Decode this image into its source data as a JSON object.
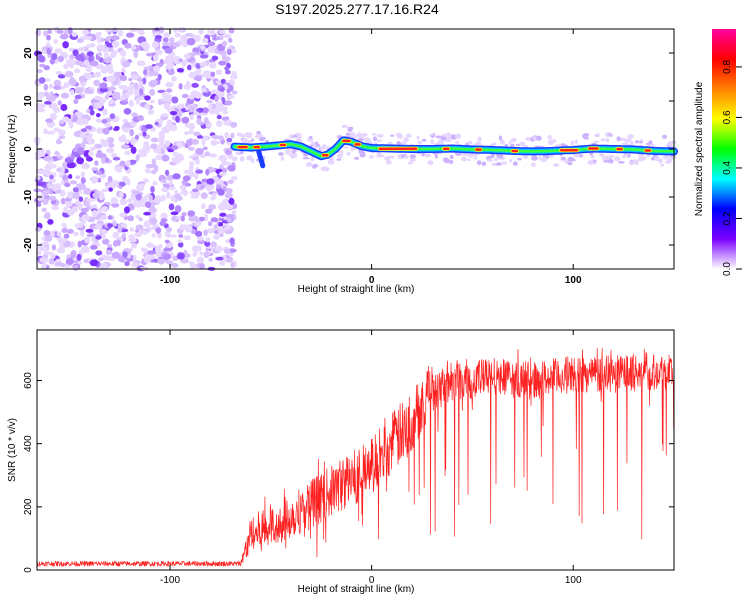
{
  "title": "S197.2025.277.17.16.R24",
  "chart_data": [
    {
      "type": "heatmap",
      "xlabel": "Height of straight line (km)",
      "ylabel": "Frequency (Hz)",
      "xlim": [
        -166,
        150
      ],
      "ylim": [
        -25,
        25
      ],
      "xticks": [
        -100,
        0,
        100
      ],
      "yticks": [
        -20,
        -10,
        0,
        10,
        20
      ],
      "noise_region_x": [
        -166,
        -68
      ],
      "signal_trace": {
        "x": [
          -68,
          -60,
          -50,
          -40,
          -35,
          -30,
          -25,
          -22,
          -18,
          -14,
          -10,
          -5,
          0,
          10,
          20,
          30,
          40,
          50,
          60,
          70,
          80,
          90,
          100,
          110,
          120,
          130,
          140,
          150
        ],
        "freq": [
          0.5,
          0.3,
          0.6,
          1.0,
          0.5,
          -0.5,
          -1.5,
          -1.2,
          0.0,
          1.8,
          1.5,
          0.6,
          0.2,
          0.1,
          0.0,
          0.0,
          0.1,
          -0.1,
          -0.2,
          -0.4,
          -0.5,
          -0.4,
          -0.2,
          0.1,
          0.0,
          -0.1,
          -0.4,
          -0.5
        ]
      },
      "colorbar": {
        "label": "Normalized spectral amplitude",
        "range": [
          0.0,
          0.95
        ],
        "ticks": [
          "0.0",
          "0.2",
          "0.4",
          "0.6",
          "0.8"
        ],
        "colors": [
          "#ffffff",
          "#7a00ff",
          "#0000ff",
          "#00ffff",
          "#00ff00",
          "#ffff00",
          "#ff8000",
          "#ff0000",
          "#ff00a0"
        ]
      }
    },
    {
      "type": "line",
      "xlabel": "Height of straight line (km)",
      "ylabel": "SNR (10 * v/v)",
      "xlim": [
        -166,
        150
      ],
      "ylim": [
        0,
        760
      ],
      "xticks": [
        -100,
        0,
        100
      ],
      "yticks": [
        0,
        200,
        400,
        600
      ],
      "color": "#ff2020",
      "envelope": {
        "x": [
          -166,
          -65,
          -60,
          -50,
          -40,
          -30,
          -20,
          -10,
          0,
          10,
          20,
          25,
          30,
          40,
          60,
          80,
          100,
          120,
          140,
          150
        ],
        "mean": [
          20,
          20,
          110,
          140,
          170,
          210,
          250,
          290,
          330,
          400,
          470,
          530,
          580,
          600,
          610,
          600,
          620,
          620,
          630,
          630
        ],
        "spread": [
          8,
          8,
          60,
          70,
          70,
          80,
          80,
          90,
          90,
          100,
          100,
          90,
          80,
          70,
          60,
          60,
          60,
          60,
          60,
          60
        ]
      }
    }
  ]
}
